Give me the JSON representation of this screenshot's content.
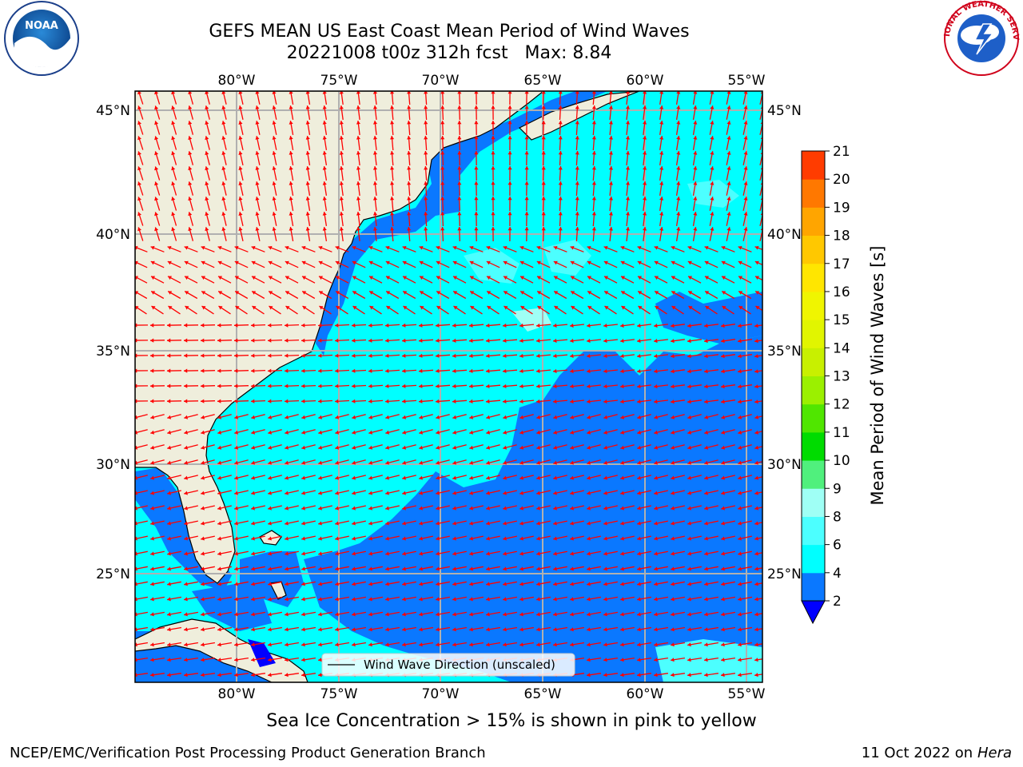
{
  "title": {
    "line1": "GEFS MEAN US East Coast Mean Period of Wind Waves",
    "line2": "20221008 t00z 312h fcst   Max: 8.84"
  },
  "map": {
    "lon_labels": [
      "80°W",
      "75°W",
      "70°W",
      "65°W",
      "60°W",
      "55°W"
    ],
    "lat_labels": [
      "45°N",
      "40°N",
      "35°N",
      "30°N",
      "25°N"
    ],
    "legend_label": "Wind Wave Direction (unscaled)",
    "colors": {
      "land": "#efeedc",
      "c2_4": "#0a78ff",
      "c4_6": "#00ffff",
      "c6_8": "#4cffff",
      "c8_9": "#9ffff5",
      "arrow": "#ff0000",
      "grid": "#b0b0b0",
      "ice_blue": "#0000ff"
    }
  },
  "colorbar": {
    "label": "Mean Period of Wind Waves [s]",
    "ticks": [
      "2",
      "4",
      "6",
      "8",
      "9",
      "10",
      "11",
      "12",
      "13",
      "14",
      "15",
      "16",
      "17",
      "18",
      "19",
      "20",
      "21"
    ],
    "colors": [
      "#0a78ff",
      "#00ffff",
      "#4cffff",
      "#9ffff5",
      "#50f07d",
      "#00dc00",
      "#50e600",
      "#9bf000",
      "#c8f000",
      "#e1f500",
      "#f0f500",
      "#ffe600",
      "#ffc800",
      "#ffa500",
      "#ff7800",
      "#ff3c00",
      "#ff0000"
    ],
    "extend_color": "#0000ff"
  },
  "footer": {
    "note": "Sea Ice Concentration > 15% is shown in pink to yellow",
    "left": "NCEP/EMC/Verification Post Processing Product Generation Branch",
    "right_date": "11 Oct 2022 on ",
    "right_host": "Hera"
  },
  "logos": {
    "noaa_text": "NOAA",
    "nws_text": "NATIONAL WEATHER SERVICE"
  }
}
